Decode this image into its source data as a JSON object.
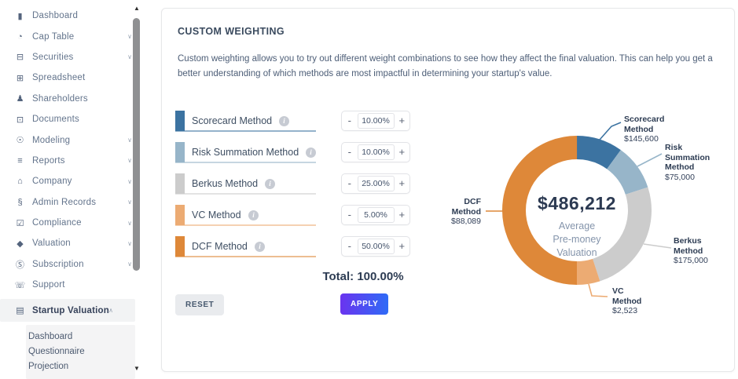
{
  "sidebar": {
    "items": [
      {
        "label": "Dashboard",
        "icon": "▮",
        "icon_name": "dashboard-icon",
        "chevron": ""
      },
      {
        "label": "Cap Table",
        "icon": "◔",
        "icon_name": "cap-table-icon",
        "chevron": "∨"
      },
      {
        "label": "Securities",
        "icon": "⊟",
        "icon_name": "securities-icon",
        "chevron": "∨"
      },
      {
        "label": "Spreadsheet",
        "icon": "⊞",
        "icon_name": "spreadsheet-icon",
        "chevron": ""
      },
      {
        "label": "Shareholders",
        "icon": "♟",
        "icon_name": "shareholders-icon",
        "chevron": ""
      },
      {
        "label": "Documents",
        "icon": "⊡",
        "icon_name": "documents-icon",
        "chevron": ""
      },
      {
        "label": "Modeling",
        "icon": "☉",
        "icon_name": "modeling-icon",
        "chevron": "∨"
      },
      {
        "label": "Reports",
        "icon": "≡",
        "icon_name": "reports-icon",
        "chevron": "∨"
      },
      {
        "label": "Company",
        "icon": "⌂",
        "icon_name": "company-icon",
        "chevron": "∨"
      },
      {
        "label": "Admin Records",
        "icon": "§",
        "icon_name": "admin-records-icon",
        "chevron": "∨"
      },
      {
        "label": "Compliance",
        "icon": "☑",
        "icon_name": "compliance-icon",
        "chevron": "∨"
      },
      {
        "label": "Valuation",
        "icon": "◆",
        "icon_name": "valuation-icon",
        "chevron": "∨"
      },
      {
        "label": "Subscription",
        "icon": "Ⓢ",
        "icon_name": "subscription-icon",
        "chevron": "∨"
      },
      {
        "label": "Support",
        "icon": "☏",
        "icon_name": "support-icon",
        "chevron": ""
      },
      {
        "label": "Startup Valuation",
        "icon": "▤",
        "icon_name": "startup-valuation-icon",
        "chevron": "∧",
        "active": true
      }
    ],
    "submenu": [
      "Dashboard",
      "Questionnaire",
      "Projection"
    ],
    "scroll_up": "▲",
    "scroll_down": "▼"
  },
  "panel": {
    "title": "CUSTOM WEIGHTING",
    "description": "Custom weighting allows you to try out different weight combinations to see how they affect the final valuation. This can help you get a better understanding of which methods are most impactful in determining your startup's value.",
    "minus": "-",
    "plus": "+",
    "total": "Total: 100.00%",
    "reset_label": "RESET",
    "apply_label": "APPLY",
    "methods": [
      {
        "name": "Scorecard Method",
        "weight": "10.00%",
        "color": "#3c73a1"
      },
      {
        "name": "Risk Summation Method",
        "weight": "10.00%",
        "color": "#97b5c9"
      },
      {
        "name": "Berkus Method",
        "weight": "25.00%",
        "color": "#cccccc"
      },
      {
        "name": "VC Method",
        "weight": "5.00%",
        "color": "#ecab73"
      },
      {
        "name": "DCF Method",
        "weight": "50.00%",
        "color": "#de8839"
      }
    ]
  },
  "chart_data": {
    "type": "donut",
    "start_angle_deg": 0,
    "direction": "clockwise",
    "center": {
      "value": "$486,212",
      "caption_lines": [
        "Average",
        "Pre-money",
        "Valuation"
      ]
    },
    "segments": [
      {
        "name": "Scorecard Method",
        "weight_pct": 10,
        "amount": "$145,600",
        "color": "#3c73a1",
        "label_lines": [
          "Scorecard",
          "Method"
        ]
      },
      {
        "name": "Risk Summation Method",
        "weight_pct": 10,
        "amount": "$75,000",
        "color": "#97b5c9",
        "label_lines": [
          "Risk",
          "Summation",
          "Method"
        ]
      },
      {
        "name": "Berkus Method",
        "weight_pct": 25,
        "amount": "$175,000",
        "color": "#cccccc",
        "label_lines": [
          "Berkus",
          "Method"
        ]
      },
      {
        "name": "VC Method",
        "weight_pct": 5,
        "amount": "$2,523",
        "color": "#ecab73",
        "label_lines": [
          "VC",
          "Method"
        ]
      },
      {
        "name": "DCF Method",
        "weight_pct": 50,
        "amount": "$88,089",
        "color": "#de8839",
        "label_lines": [
          "DCF",
          "Method"
        ]
      }
    ]
  }
}
